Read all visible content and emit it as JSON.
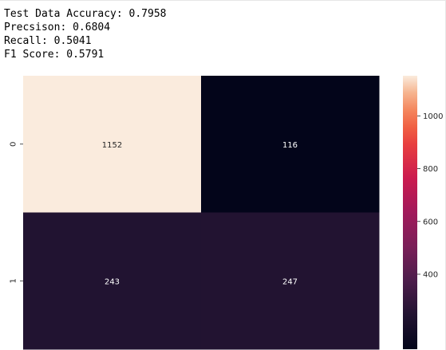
{
  "output_lines": [
    "Test Data Accuracy: 0.7958",
    "Precsison: 0.6804",
    "Recall: 0.5041",
    "F1 Score: 0.5791"
  ],
  "chart_data": {
    "type": "heatmap",
    "colormap": "rocket",
    "row_labels": [
      "0",
      "1"
    ],
    "col_labels": [
      "",
      ""
    ],
    "values": [
      [
        1152,
        116
      ],
      [
        243,
        247
      ]
    ],
    "annotations": [
      [
        "1152",
        "116"
      ],
      [
        "243",
        "247"
      ]
    ],
    "colorbar": {
      "vmin": 116,
      "vmax": 1152,
      "ticks": [
        400,
        600,
        800,
        1000
      ],
      "tick_labels": [
        "400",
        "600",
        "800",
        "1000"
      ]
    }
  }
}
